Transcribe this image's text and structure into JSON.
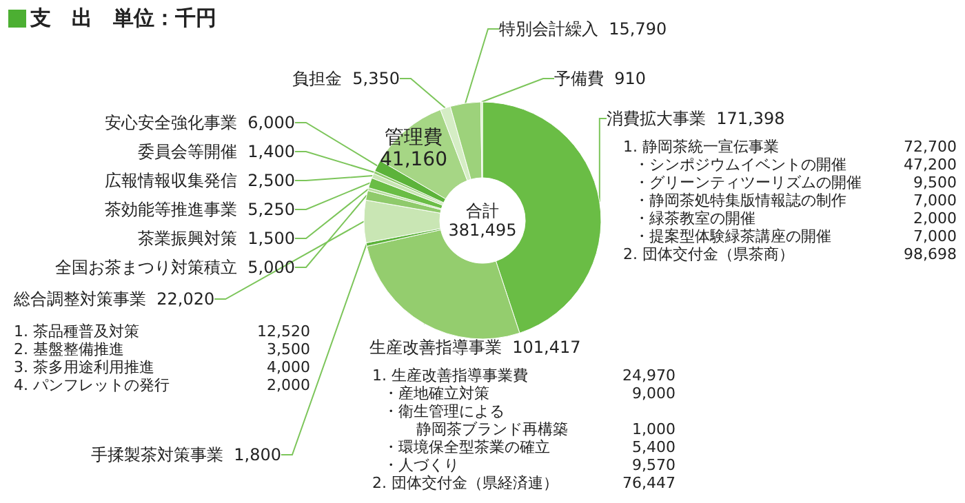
{
  "chart_data": {
    "type": "donut",
    "title": "支　出　単位：千円",
    "categories": [
      "消費拡大事業",
      "生産改善指導事業",
      "手揉製茶対策事業",
      "総合調整対策事業",
      "全国お茶まつり対策積立",
      "茶業振興対策",
      "茶効能等推進事業",
      "広報情報収集発信",
      "委員会等開催",
      "安心安全強化事業",
      "管理費",
      "負担金",
      "特別会計繰入",
      "予備費"
    ],
    "values": [
      171398,
      101417,
      1800,
      22020,
      5000,
      1500,
      5250,
      2500,
      1400,
      6000,
      41160,
      5350,
      15790,
      910
    ],
    "value_labels": [
      "171,398",
      "101,417",
      "1,800",
      "22,020",
      "5,000",
      "1,500",
      "5,250",
      "2,500",
      "1,400",
      "6,000",
      "41,160",
      "5,350",
      "15,790",
      "910"
    ],
    "colors": [
      "#6abd45",
      "#94cd6e",
      "#5cb33a",
      "#c9e6b4",
      "#8fca6b",
      "#b9dea0",
      "#6abd45",
      "#c9e6b4",
      "#8fca6b",
      "#5cb33a",
      "#a6d685",
      "#d5edc5",
      "#9dd27b",
      "#d5edc5"
    ],
    "annotations": [
      "1. 静岡茶統一宣伝事業 72,700",
      "・シンポジウムイベントの開催 47,200",
      "・グリーンティツーリズムの開催 9,500",
      "・静岡茶処特集版情報誌の制作 7,000",
      "・緑茶教室の開催 2,000",
      "・提案型体験緑茶講座の開催 7,000",
      "2. 団体交付金（県茶商） 98,698",
      "1. 生産改善指導事業費 24,970",
      "・産地確立対策 9,000",
      "・衛生管理による静岡茶ブランド再構築 1,000",
      "・環境保全型茶業の確立 5,400",
      "・人づくり 9,570",
      "2. 団体交付金（県経済連） 76,447",
      "1. 茶品種普及対策 12,520",
      "2. 基盤整備推進 3,500",
      "3. 茶多用途利用推進 4,000",
      "4. パンフレットの発行 2,000",
      "合計\n381,495"
    ]
  }
}
